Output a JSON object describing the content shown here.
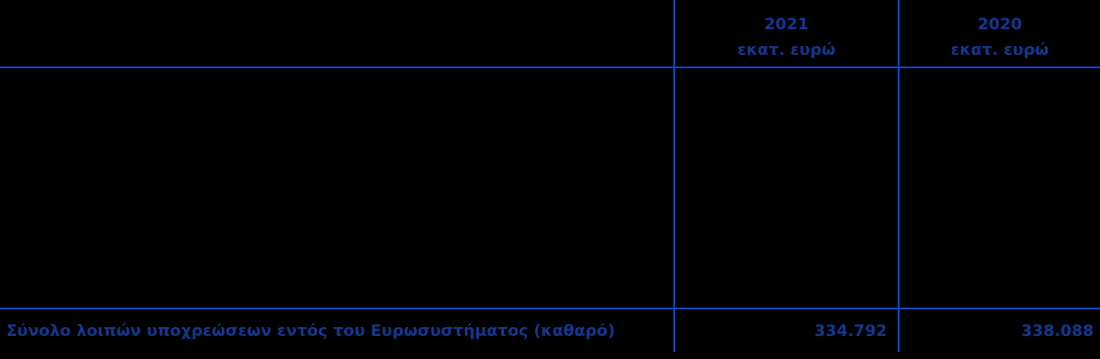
{
  "colors": {
    "background": "#000000",
    "line": "#0a48c0",
    "text": "#15378c"
  },
  "table": {
    "columns": [
      {
        "year": "2021",
        "unit": "εκατ. ευρώ"
      },
      {
        "year": "2020",
        "unit": "εκατ. ευρώ"
      }
    ],
    "total_row": {
      "label": "Σύνολο λοιπών υποχρεώσεων εντός του Ευρωσυστήματος (καθαρό)",
      "values": [
        "334.792",
        "338.088"
      ]
    }
  },
  "chart_data": {
    "type": "table",
    "title": "",
    "columns": [
      "",
      "2021 εκατ. ευρώ",
      "2020 εκατ. ευρώ"
    ],
    "rows": [
      [
        "Σύνολο λοιπών υποχρεώσεων εντός του Ευρωσυστήματος (καθαρό)",
        "334.792",
        "338.088"
      ]
    ]
  }
}
